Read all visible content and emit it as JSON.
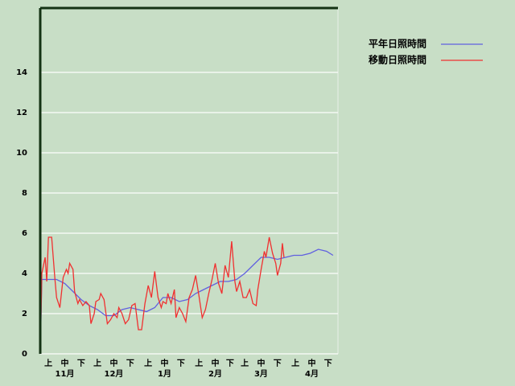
{
  "chart_data": {
    "type": "line",
    "xlim": [
      0,
      182
    ],
    "xticks": [
      {
        "value": 5,
        "label": "上"
      },
      {
        "value": 15,
        "label": "中"
      },
      {
        "value": 25,
        "label": "下"
      },
      {
        "value": 35,
        "label": "上"
      },
      {
        "value": 45,
        "label": "中"
      },
      {
        "value": 55,
        "label": "下"
      },
      {
        "value": 66,
        "label": "上"
      },
      {
        "value": 76,
        "label": "中"
      },
      {
        "value": 86,
        "label": "下"
      },
      {
        "value": 97,
        "label": "上"
      },
      {
        "value": 107,
        "label": "中"
      },
      {
        "value": 116,
        "label": "下"
      },
      {
        "value": 125,
        "label": "上"
      },
      {
        "value": 135,
        "label": "中"
      },
      {
        "value": 145,
        "label": "下"
      },
      {
        "value": 156,
        "label": "上"
      },
      {
        "value": 166,
        "label": "中"
      },
      {
        "value": 176,
        "label": "下"
      }
    ],
    "month_labels": [
      {
        "value": 15,
        "label": "11月"
      },
      {
        "value": 45,
        "label": "12月"
      },
      {
        "value": 76,
        "label": "1月"
      },
      {
        "value": 107,
        "label": "2月"
      },
      {
        "value": 135,
        "label": "3月"
      },
      {
        "value": 166,
        "label": "4月"
      }
    ],
    "ylim": [
      0,
      17.2
    ],
    "yticks": [
      0,
      2,
      4,
      6,
      8,
      10,
      12,
      14
    ],
    "grid": true,
    "legend": "top-right",
    "series": [
      {
        "name": "平年日照時間",
        "color": "#6060e0",
        "x": [
          0,
          1,
          5,
          10,
          15,
          20,
          25,
          30,
          35,
          40,
          45,
          50,
          55,
          60,
          65,
          70,
          75,
          80,
          85,
          90,
          95,
          100,
          105,
          110,
          115,
          120,
          125,
          130,
          135,
          140,
          145,
          150,
          155,
          160,
          165,
          170,
          175,
          179
        ],
        "values": [
          0,
          3.7,
          3.7,
          3.7,
          3.5,
          3.1,
          2.7,
          2.4,
          2.2,
          1.9,
          1.9,
          2.2,
          2.3,
          2.2,
          2.1,
          2.3,
          2.8,
          2.8,
          2.6,
          2.7,
          3.0,
          3.2,
          3.4,
          3.6,
          3.6,
          3.7,
          4.0,
          4.4,
          4.8,
          4.8,
          4.7,
          4.8,
          4.9,
          4.9,
          5.0,
          5.2,
          5.1,
          4.9
        ]
      },
      {
        "name": "移動日照時間",
        "color": "#f03030",
        "x": [
          0,
          1,
          3,
          4,
          5,
          7,
          9,
          10,
          12,
          14,
          16,
          17,
          18,
          20,
          21,
          23,
          24,
          26,
          28,
          30,
          31,
          33,
          34,
          36,
          37,
          39,
          41,
          43,
          45,
          47,
          48,
          50,
          52,
          54,
          56,
          58,
          60,
          62,
          64,
          66,
          68,
          70,
          72,
          74,
          75,
          77,
          78,
          80,
          82,
          83,
          85,
          87,
          89,
          91,
          93,
          95,
          97,
          99,
          101,
          103,
          105,
          107,
          109,
          111,
          113,
          115,
          117,
          119,
          120,
          122,
          124,
          126,
          128,
          130,
          132,
          133,
          135,
          137,
          138,
          140,
          142,
          144,
          145,
          147,
          148,
          149
        ],
        "values": [
          0,
          4.0,
          4.8,
          3.6,
          5.8,
          5.8,
          3.7,
          2.8,
          2.3,
          3.8,
          4.2,
          4.0,
          4.5,
          4.2,
          3.1,
          2.5,
          2.7,
          2.4,
          2.6,
          2.4,
          1.5,
          2.0,
          2.6,
          2.7,
          3.0,
          2.7,
          1.5,
          1.7,
          2.0,
          1.8,
          2.3,
          2.0,
          1.5,
          1.7,
          2.4,
          2.5,
          1.2,
          1.2,
          2.5,
          3.4,
          2.8,
          4.1,
          2.8,
          2.3,
          2.6,
          2.5,
          3.0,
          2.5,
          3.2,
          1.8,
          2.3,
          2.0,
          1.6,
          2.8,
          3.2,
          3.9,
          2.9,
          1.8,
          2.2,
          3.0,
          3.7,
          4.5,
          3.5,
          3.0,
          4.4,
          3.8,
          5.6,
          3.6,
          3.1,
          3.6,
          2.8,
          2.8,
          3.2,
          2.5,
          2.4,
          3.2,
          4.2,
          5.1,
          4.8,
          5.8,
          5.0,
          4.5,
          3.9,
          4.5,
          5.5,
          4.8
        ]
      }
    ]
  }
}
